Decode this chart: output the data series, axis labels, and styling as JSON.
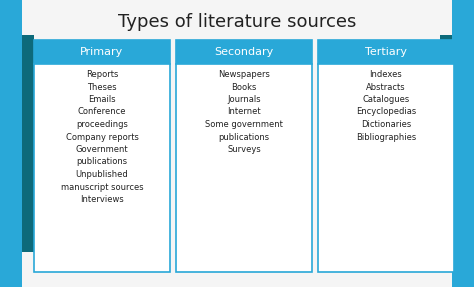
{
  "title": "Types of literature sources",
  "title_fontsize": 13,
  "background_color": "#f5f5f5",
  "sidebar_outer_color": "#29a8d8",
  "sidebar_inner_color": "#0d6a7a",
  "header_bg_color": "#29a8d8",
  "box_bg_color": "#ffffff",
  "box_border_color": "#29a8d8",
  "header_text_color": "#ffffff",
  "body_text_color": "#222222",
  "columns": [
    {
      "header": "Primary",
      "items": "Reports\nTheses\nEmails\nConference\nproceedings\nCompany reports\nGovernment\npublications\nUnpublished\nmanuscript sources\nInterviews"
    },
    {
      "header": "Secondary",
      "items": "Newspapers\nBooks\nJournals\nInternet\nSome government\npublications\nSurveys"
    },
    {
      "header": "Tertiary",
      "items": "Indexes\nAbstracts\nCatalogues\nEncyclopedias\nDictionaries\nBibliographies"
    }
  ]
}
